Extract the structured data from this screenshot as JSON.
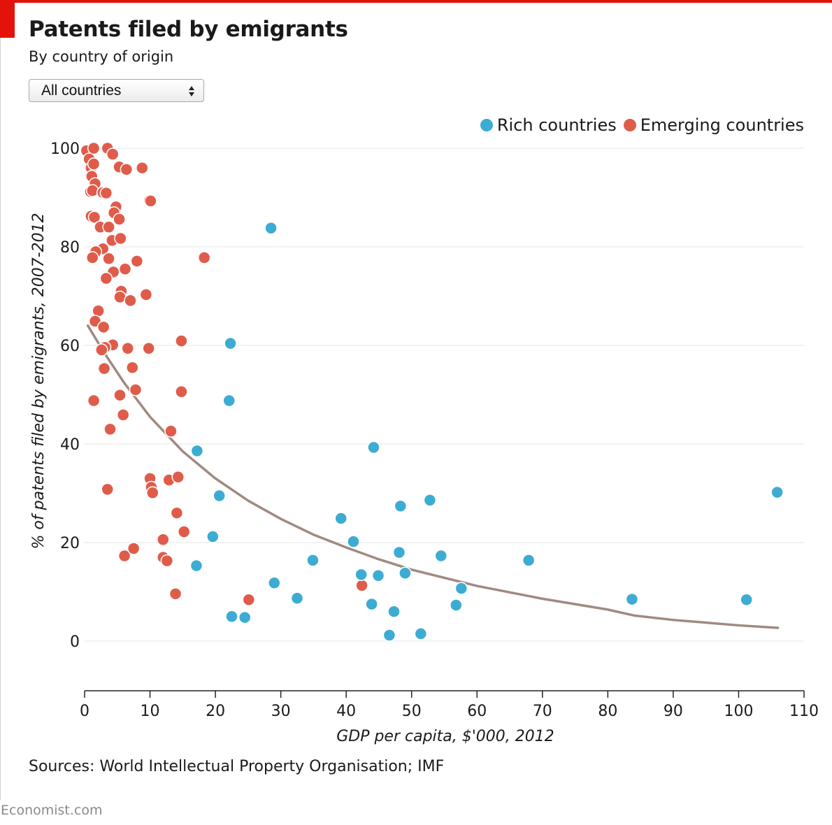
{
  "header": {
    "title": "Patents filed by emigrants",
    "subtitle": "By country of origin"
  },
  "filter": {
    "selected": "All countries"
  },
  "colors": {
    "rich": "#3cacd3",
    "emerging": "#e05c4a",
    "trend": "#a08a80",
    "accent": "#e3120b"
  },
  "footer": {
    "source": "Sources: World Intellectual Property Organisation; IMF",
    "brand": "Economist.com"
  },
  "chart_data": {
    "type": "scatter",
    "xlabel": "GDP per capita, $'000, 2012",
    "ylabel": "% of patents filed by emigrants, 2007-2012",
    "xlim": [
      0,
      110
    ],
    "ylim": [
      -10,
      100
    ],
    "xticks": [
      0,
      10,
      20,
      30,
      40,
      50,
      60,
      70,
      80,
      90,
      100,
      110
    ],
    "yticks": [
      0,
      20,
      40,
      60,
      80,
      100
    ],
    "grid": "horizontal",
    "legend_position": "top-right",
    "series": [
      {
        "name": "Rich countries",
        "color": "#3cacd3",
        "points": [
          [
            28.5,
            83.8
          ],
          [
            22.3,
            60.4
          ],
          [
            22.1,
            48.8
          ],
          [
            17.2,
            38.6
          ],
          [
            44.2,
            39.3
          ],
          [
            20.6,
            29.5
          ],
          [
            19.6,
            21.2
          ],
          [
            17.1,
            15.3
          ],
          [
            29.0,
            11.8
          ],
          [
            22.5,
            5.0
          ],
          [
            24.5,
            4.8
          ],
          [
            32.5,
            8.7
          ],
          [
            34.9,
            16.4
          ],
          [
            39.2,
            24.9
          ],
          [
            41.1,
            20.2
          ],
          [
            42.3,
            13.5
          ],
          [
            44.9,
            13.3
          ],
          [
            43.9,
            7.5
          ],
          [
            47.3,
            6.0
          ],
          [
            46.6,
            1.2
          ],
          [
            48.1,
            18.0
          ],
          [
            48.3,
            27.4
          ],
          [
            49.0,
            13.8
          ],
          [
            51.4,
            1.5
          ],
          [
            52.8,
            28.6
          ],
          [
            54.5,
            17.3
          ],
          [
            56.8,
            7.3
          ],
          [
            57.6,
            10.7
          ],
          [
            67.9,
            16.4
          ],
          [
            83.7,
            8.5
          ],
          [
            101.2,
            8.4
          ],
          [
            105.9,
            30.2
          ]
        ]
      },
      {
        "name": "Emerging countries",
        "color": "#e05c4a",
        "points": [
          [
            0.3,
            99.5
          ],
          [
            0.7,
            97.8
          ],
          [
            1.0,
            96.0
          ],
          [
            1.4,
            100.0
          ],
          [
            1.4,
            96.8
          ],
          [
            3.5,
            100.0
          ],
          [
            4.3,
            98.8
          ],
          [
            5.3,
            96.2
          ],
          [
            6.4,
            95.7
          ],
          [
            8.8,
            96.0
          ],
          [
            1.1,
            94.3
          ],
          [
            1.6,
            92.8
          ],
          [
            0.9,
            91.2
          ],
          [
            1.2,
            91.4
          ],
          [
            2.8,
            91.0
          ],
          [
            3.3,
            90.9
          ],
          [
            9.9,
            89.4
          ],
          [
            10.1,
            89.3
          ],
          [
            4.8,
            88.1
          ],
          [
            4.5,
            86.9
          ],
          [
            1.0,
            86.2
          ],
          [
            1.5,
            86.0
          ],
          [
            5.3,
            85.6
          ],
          [
            2.4,
            84.0
          ],
          [
            3.7,
            84.0
          ],
          [
            4.2,
            81.3
          ],
          [
            5.5,
            81.7
          ],
          [
            2.8,
            79.6
          ],
          [
            1.7,
            79.0
          ],
          [
            1.2,
            77.8
          ],
          [
            3.7,
            77.6
          ],
          [
            8.0,
            77.1
          ],
          [
            18.3,
            77.8
          ],
          [
            6.2,
            75.5
          ],
          [
            4.4,
            74.9
          ],
          [
            3.3,
            73.6
          ],
          [
            5.6,
            71.0
          ],
          [
            5.4,
            69.8
          ],
          [
            7.0,
            69.1
          ],
          [
            9.4,
            70.3
          ],
          [
            2.1,
            67.0
          ],
          [
            1.6,
            64.9
          ],
          [
            2.9,
            63.7
          ],
          [
            14.8,
            60.9
          ],
          [
            4.3,
            60.1
          ],
          [
            3.1,
            59.6
          ],
          [
            2.6,
            59.1
          ],
          [
            6.6,
            59.4
          ],
          [
            9.8,
            59.4
          ],
          [
            3.0,
            55.3
          ],
          [
            7.3,
            55.5
          ],
          [
            7.8,
            51.0
          ],
          [
            14.8,
            50.6
          ],
          [
            5.4,
            49.9
          ],
          [
            1.4,
            48.8
          ],
          [
            5.9,
            45.9
          ],
          [
            3.9,
            43.0
          ],
          [
            13.2,
            42.6
          ],
          [
            10.0,
            33.0
          ],
          [
            10.2,
            31.2
          ],
          [
            10.4,
            30.1
          ],
          [
            12.9,
            32.7
          ],
          [
            14.3,
            33.3
          ],
          [
            3.5,
            30.8
          ],
          [
            14.1,
            26.0
          ],
          [
            15.2,
            22.2
          ],
          [
            12.0,
            20.6
          ],
          [
            12.0,
            17.0
          ],
          [
            12.6,
            16.3
          ],
          [
            6.1,
            17.3
          ],
          [
            7.5,
            18.8
          ],
          [
            13.9,
            9.6
          ],
          [
            25.1,
            8.4
          ],
          [
            42.4,
            11.3
          ]
        ]
      }
    ],
    "trend": {
      "name": "",
      "color": "#a08a80",
      "points": [
        [
          0.5,
          64.0
        ],
        [
          3,
          58.5
        ],
        [
          6,
          52.5
        ],
        [
          10,
          45.5
        ],
        [
          15,
          38.5
        ],
        [
          20,
          33.0
        ],
        [
          25,
          28.5
        ],
        [
          30,
          24.8
        ],
        [
          35,
          21.6
        ],
        [
          40,
          19.0
        ],
        [
          45,
          16.6
        ],
        [
          50,
          14.5
        ],
        [
          60,
          11.2
        ],
        [
          70,
          8.6
        ],
        [
          80,
          6.4
        ],
        [
          84,
          5.2
        ],
        [
          90,
          4.3
        ],
        [
          100,
          3.2
        ],
        [
          106,
          2.7
        ]
      ]
    }
  }
}
